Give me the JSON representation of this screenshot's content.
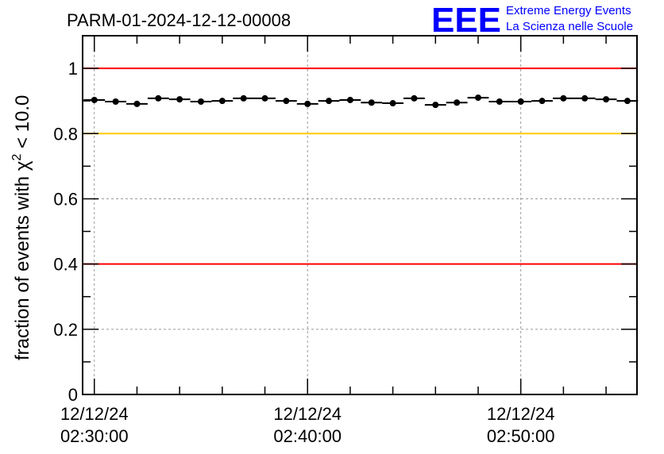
{
  "logo": {
    "mark": "EEE",
    "line1": "Extreme Energy Events",
    "line2": "La Scienza nelle Scuole",
    "color": "#0000ff"
  },
  "chart_data": {
    "type": "scatter",
    "title": "PARM-01-2024-12-12-00008",
    "ylabel": "fraction of events with χ² < 10.0",
    "ylabel_parts": {
      "main": "fraction of events with χ",
      "sup": "2",
      "tail": " < 10.0"
    },
    "xlabel": "",
    "x_unit": "minutes after 12/12/24 02:30:00",
    "xlim": [
      -0.55,
      25.45
    ],
    "ylim": [
      0,
      1.1
    ],
    "yticks": [
      0,
      0.2,
      0.4,
      0.6,
      0.8,
      1
    ],
    "ytick_labels": [
      "0",
      "0.2",
      "0.4",
      "0.6",
      "0.8",
      "1"
    ],
    "xticks": [
      0,
      10,
      20
    ],
    "xtick_labels": [
      {
        "date": "12/12/24",
        "time": "02:30:00"
      },
      {
        "date": "12/12/24",
        "time": "02:40:00"
      },
      {
        "date": "12/12/24",
        "time": "02:50:00"
      }
    ],
    "x_minor_step": 2,
    "grid": true,
    "reference_lines": [
      {
        "y": 1.0,
        "color": "#ff0000"
      },
      {
        "y": 0.8,
        "color": "#ffcc00"
      },
      {
        "y": 0.4,
        "color": "#ff0000"
      }
    ],
    "x": [
      0,
      1,
      2,
      3,
      4,
      5,
      6,
      7,
      8,
      9,
      10,
      11,
      12,
      13,
      14,
      15,
      16,
      17,
      18,
      19,
      20,
      21,
      22,
      23,
      24,
      25
    ],
    "y": [
      0.903,
      0.898,
      0.891,
      0.908,
      0.905,
      0.898,
      0.9,
      0.908,
      0.908,
      0.9,
      0.891,
      0.9,
      0.903,
      0.895,
      0.893,
      0.908,
      0.888,
      0.895,
      0.91,
      0.898,
      0.898,
      0.9,
      0.908,
      0.908,
      0.905,
      0.9
    ],
    "x_error": 0.5
  }
}
